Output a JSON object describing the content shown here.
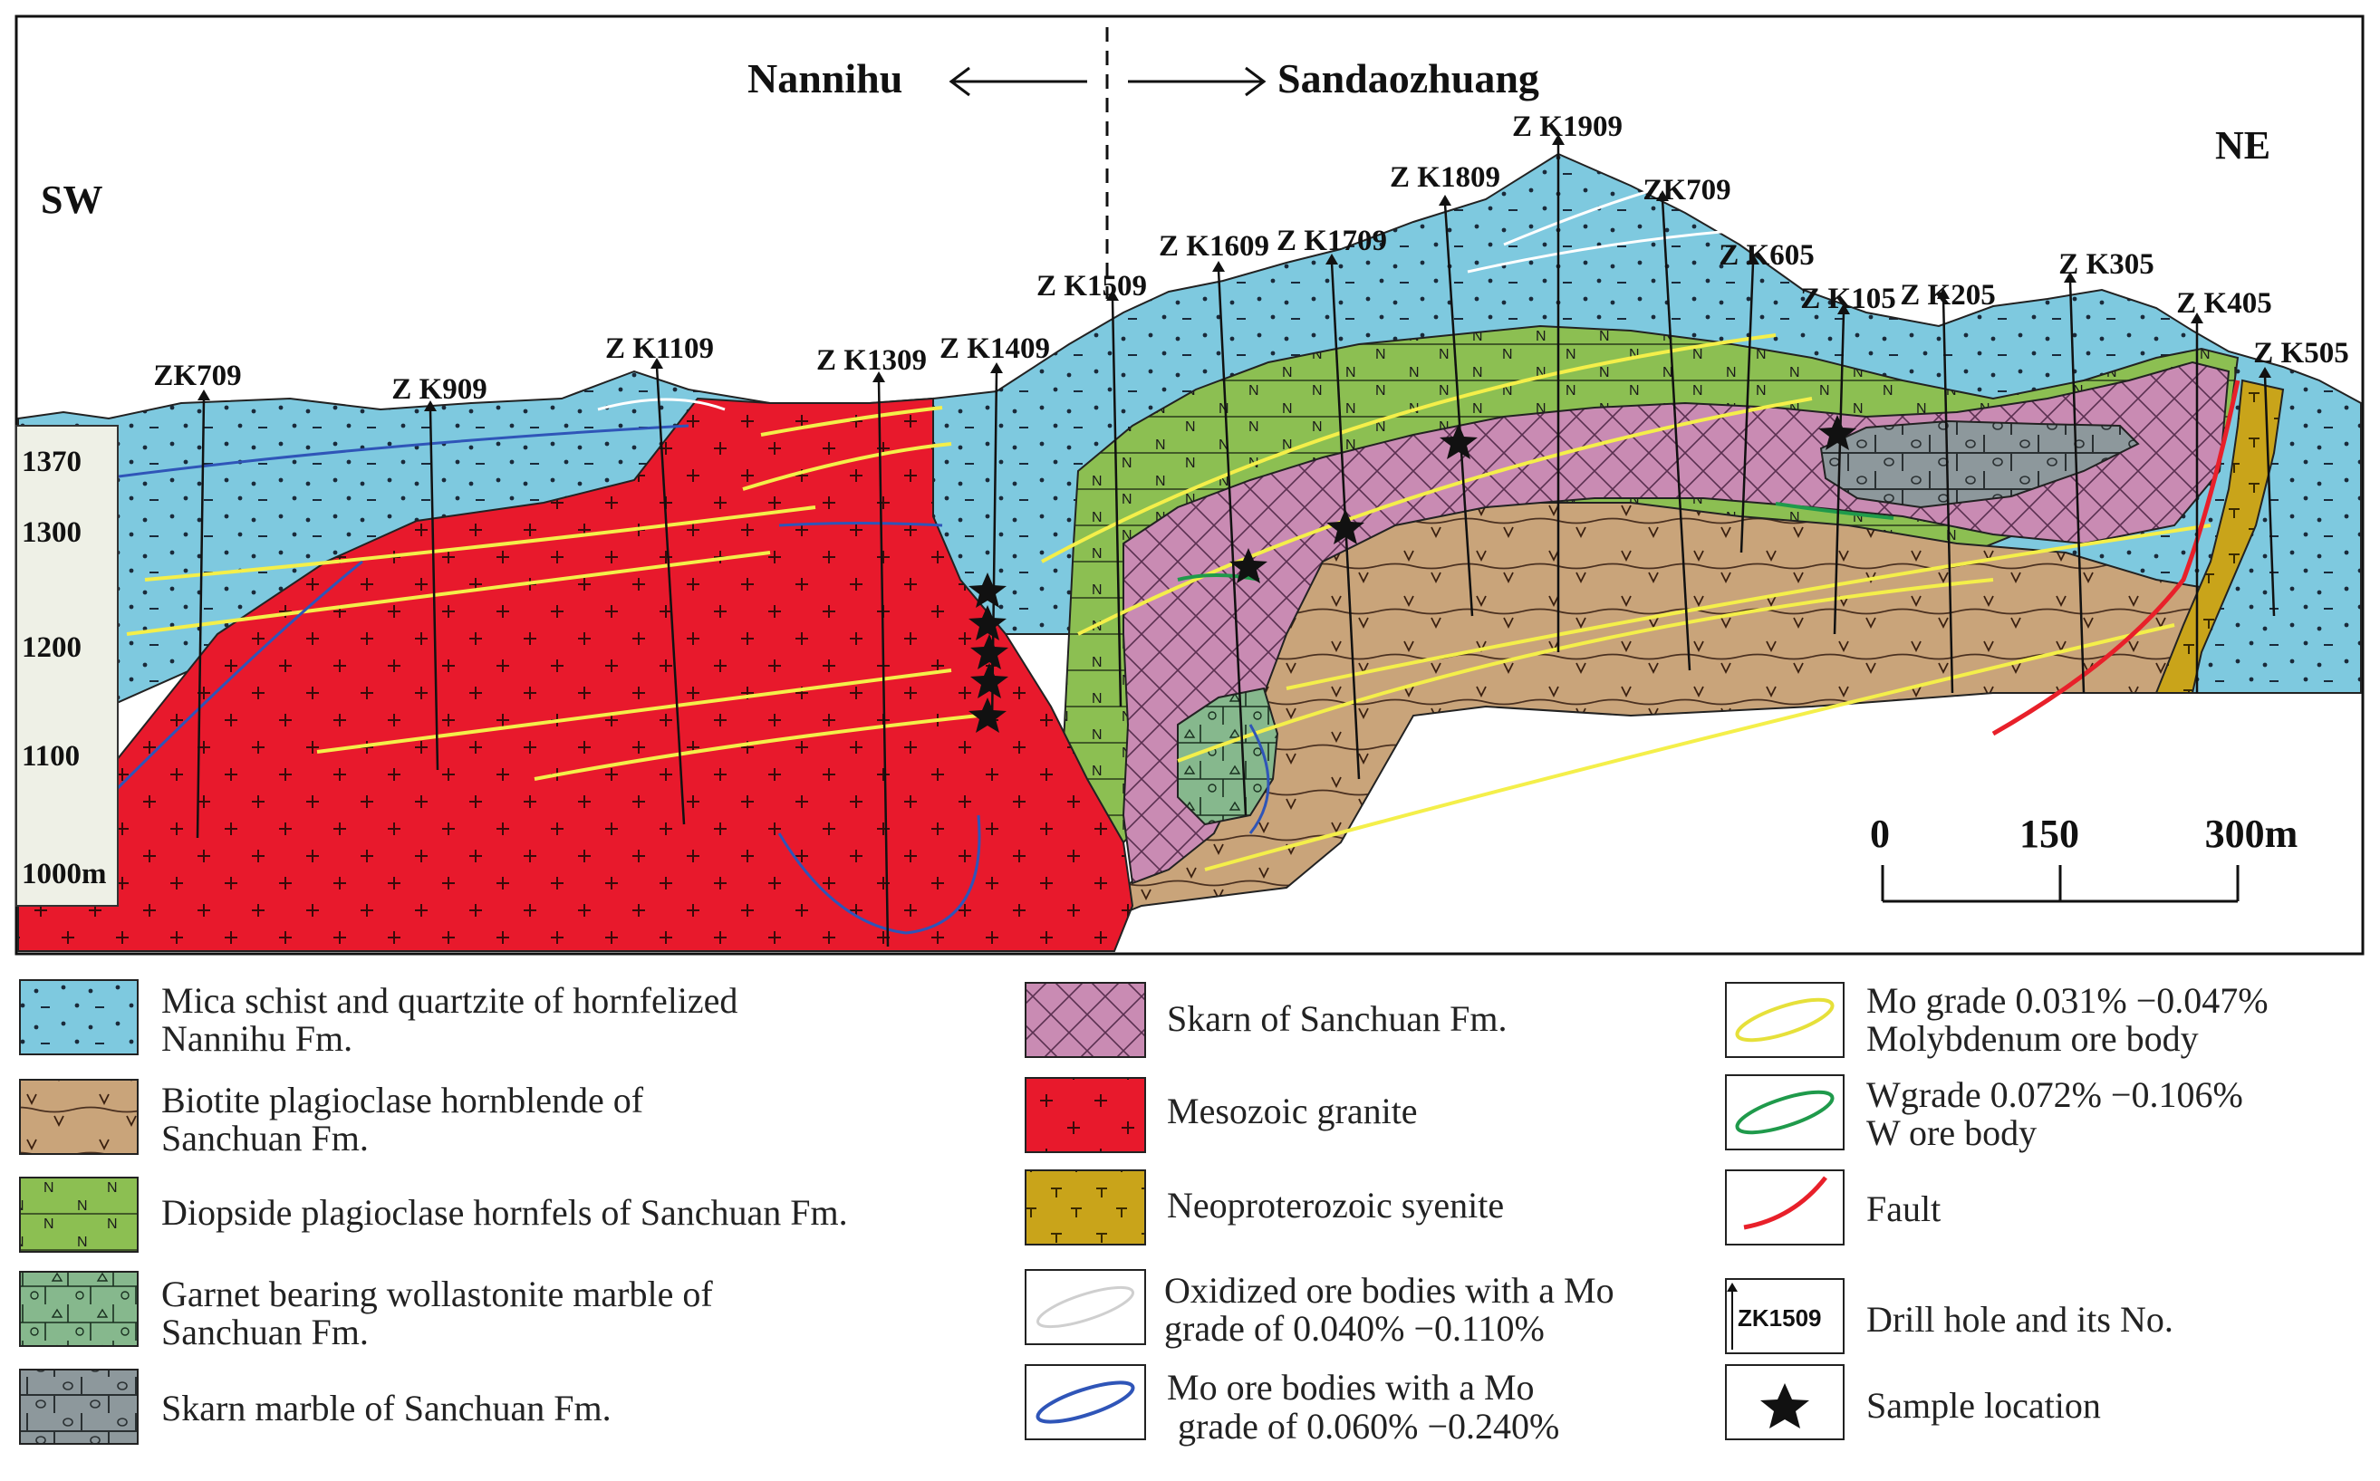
{
  "header": {
    "left_direction": "Nannihu",
    "right_direction": "Sandaozhuang",
    "left_orientation": "SW",
    "right_orientation": "NE"
  },
  "elevation_ticks": [
    "1370",
    "1300",
    "1200",
    "1100",
    "1000m"
  ],
  "drill_holes": [
    "ZK709",
    "Z K909",
    "Z K1109",
    "Z K1309",
    "Z K1409",
    "Z K1509",
    "Z K1609",
    "Z K1709",
    "Z K1809",
    "Z K1909",
    "ZK709",
    "Z K605",
    "Z K105",
    "Z K205",
    "Z K305",
    "Z K405",
    "Z K505"
  ],
  "scale_bar": {
    "labels": [
      "0",
      "150",
      "300m"
    ]
  },
  "legend": {
    "mica_schist": "Mica schist and quartzite of hornfelized Nannihu Fm.",
    "biotite": "Biotite plagioclase hornblende of Sanchuan Fm.",
    "diopside": "Diopside plagioclase hornfels of Sanchuan Fm.",
    "garnet": "Garnet bearing wollastonite marble of Sanchuan Fm.",
    "skarn_marble": "Skarn marble of Sanchuan Fm.",
    "skarn": "Skarn of Sanchuan Fm.",
    "granite": "Mesozoic granite",
    "syenite": "Neoproterozoic syenite",
    "oxidized": "Oxidized ore bodies with a Mo grade of 0.040% −0.110%",
    "mo_high": "Mo ore bodies with a Mo grade of 0.060% −0.240%",
    "mo_grade": "Mo grade 0.031% −0.047% Molybdenum ore body",
    "w_grade": "Wgrade 0.072% −0.106% W ore body",
    "fault": "Fault",
    "drill": "Drill hole and its No.",
    "drill_icon_label": "ZK1509",
    "sample": "Sample location"
  },
  "colors": {
    "mica": "#7ec9df",
    "biotite": "#c9a47a",
    "diopside": "#8cbf52",
    "garnet": "#86b88d",
    "skarn_marble": "#8d989c",
    "skarn": "#c98bb3",
    "granite": "#e8192c",
    "syenite": "#c9a41a",
    "mo_ore": "#f4ef4a",
    "mo_high": "#2f55b8",
    "w_ore": "#1f9a4b",
    "fault": "#e8202a"
  }
}
